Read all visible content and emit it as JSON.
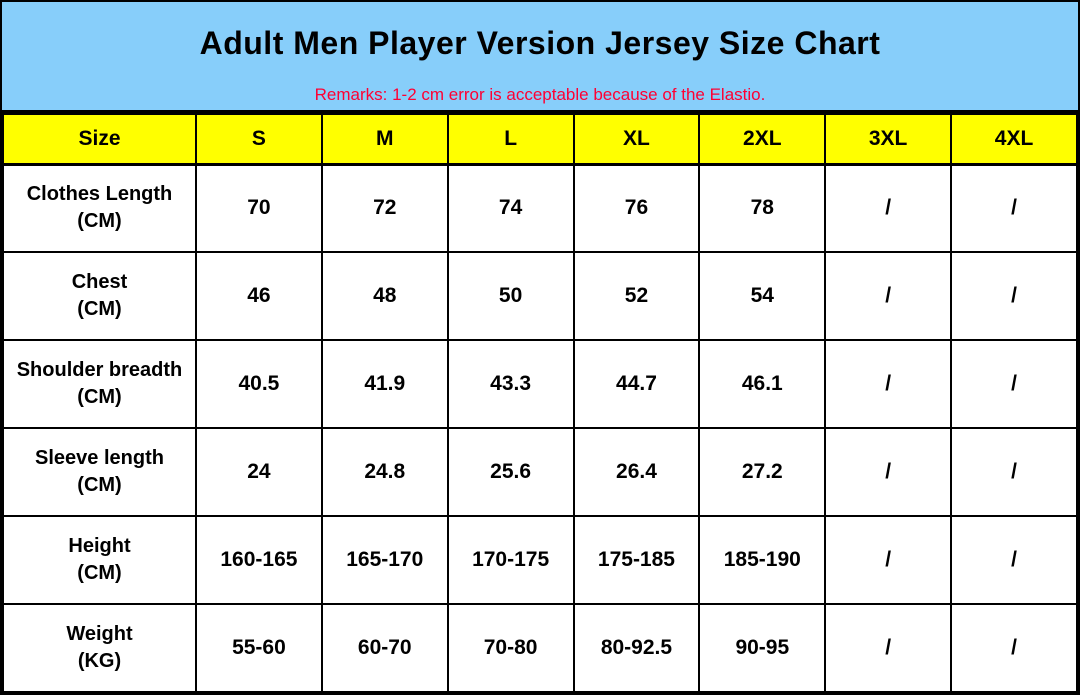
{
  "header": {
    "title": "Adult Men Player Version Jersey Size Chart",
    "remarks": "Remarks: 1-2 cm error is acceptable because of the Elastio.",
    "background_color": "#87CEFA",
    "remarks_color": "#FF0033"
  },
  "table": {
    "header_background_color": "#FFFF00",
    "columns": [
      "Size",
      "S",
      "M",
      "L",
      "XL",
      "2XL",
      "3XL",
      "4XL"
    ],
    "rows": [
      {
        "label": "Clothes Length",
        "unit": "(CM)",
        "values": [
          "70",
          "72",
          "74",
          "76",
          "78",
          "/",
          "/"
        ]
      },
      {
        "label": "Chest",
        "unit": "(CM)",
        "values": [
          "46",
          "48",
          "50",
          "52",
          "54",
          "/",
          "/"
        ]
      },
      {
        "label": "Shoulder breadth",
        "unit": "(CM)",
        "values": [
          "40.5",
          "41.9",
          "43.3",
          "44.7",
          "46.1",
          "/",
          "/"
        ]
      },
      {
        "label": "Sleeve length",
        "unit": "(CM)",
        "values": [
          "24",
          "24.8",
          "25.6",
          "26.4",
          "27.2",
          "/",
          "/"
        ]
      },
      {
        "label": "Height",
        "unit": "(CM)",
        "values": [
          "160-165",
          "165-170",
          "170-175",
          "175-185",
          "185-190",
          "/",
          "/"
        ]
      },
      {
        "label": "Weight",
        "unit": "(KG)",
        "values": [
          "55-60",
          "60-70",
          "70-80",
          "80-92.5",
          "90-95",
          "/",
          "/"
        ]
      }
    ]
  }
}
